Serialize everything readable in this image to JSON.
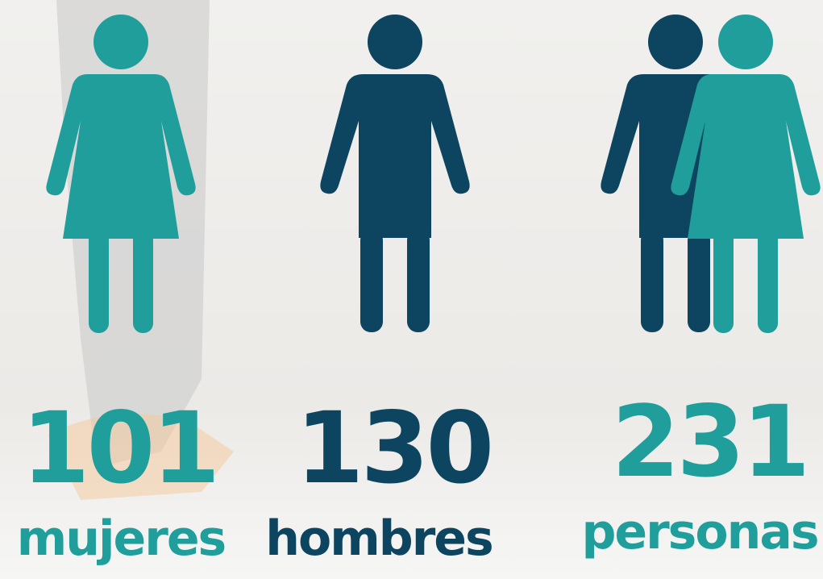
{
  "items": [
    {
      "number": "101",
      "label": "mujeres"
    },
    {
      "number": "130",
      "label": "hombres"
    },
    {
      "number": "231",
      "label": "personas"
    }
  ]
}
